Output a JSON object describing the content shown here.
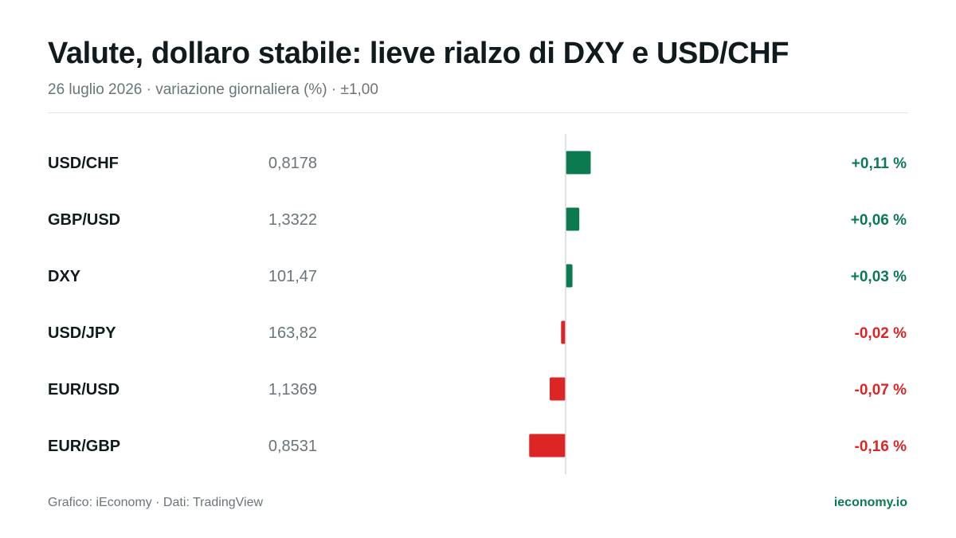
{
  "header": {
    "title": "Valute, dollaro stabile: lieve rialzo di DXY e USD/CHF",
    "subtitle": "26 luglio 2026 · variazione giornaliera (%) · ±1,00"
  },
  "footer": {
    "source": "Grafico: iEconomy · Dati: TradingView",
    "brand": "ieconomy.io"
  },
  "colors": {
    "positive": "#0c7a51",
    "negative": "#dc2626",
    "pair_label": "#111a1c",
    "price": "#6b7478",
    "axis": "#d6dadb"
  },
  "chart_data": {
    "type": "bar",
    "orientation": "horizontal",
    "title": "Valute, dollaro stabile: lieve rialzo di DXY e USD/CHF",
    "subtitle": "26 luglio 2026 · variazione giornaliera (%) · ±1,00",
    "categories": [
      "USD/CHF",
      "GBP/USD",
      "DXY",
      "USD/JPY",
      "EUR/USD",
      "EUR/GBP"
    ],
    "prices": [
      "0,8178",
      "1,3322",
      "101,47",
      "163,82",
      "1,1369",
      "0,8531"
    ],
    "values": [
      0.11,
      0.06,
      0.03,
      -0.02,
      -0.07,
      -0.16
    ],
    "value_labels": [
      "+0,11 %",
      "+0,06 %",
      "+0,03 %",
      "-0,02 %",
      "-0,07 %",
      "-0,16 %"
    ],
    "xlim": [
      -1.0,
      1.0
    ],
    "grid": false,
    "legend": "none"
  }
}
